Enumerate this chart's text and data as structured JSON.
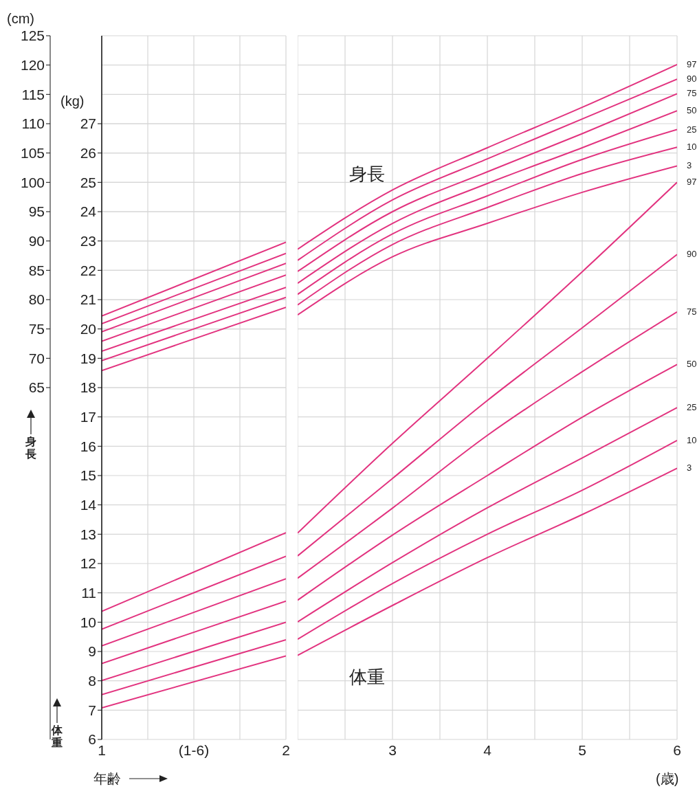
{
  "chart_data": [
    {
      "type": "line",
      "xlabel": "年齢",
      "ylabel": "(kg)",
      "y2label": "(cm)",
      "annotations": [
        "身長",
        "体重"
      ],
      "x": [
        1,
        2
      ],
      "xlim": [
        1,
        2
      ],
      "xticks": [
        1,
        {
          "value": 1.25,
          "label": null
        },
        {
          "value": 1.5,
          "label": "(1-6)"
        },
        {
          "value": 1.75,
          "label": null
        },
        2
      ],
      "ylim": [
        6,
        30
      ],
      "yticks": [
        6,
        7,
        8,
        9,
        10,
        11,
        12,
        13,
        14,
        15,
        16,
        17,
        18,
        19,
        20,
        21,
        22,
        23,
        24,
        25,
        26,
        27
      ],
      "y2lim": [
        5,
        125
      ],
      "y2ticks": [
        65,
        70,
        75,
        80,
        85,
        90,
        95,
        100,
        105,
        110,
        115,
        120,
        125
      ],
      "grid": true,
      "series": [
        {
          "color": "#e2337f",
          "axis": "y2",
          "values": [
            77.2,
            89.8
          ]
        },
        {
          "color": "#e2337f",
          "axis": "y2",
          "values": [
            75.9,
            87.9
          ]
        },
        {
          "color": "#e2337f",
          "axis": "y2",
          "values": [
            74.5,
            86.2
          ]
        },
        {
          "color": "#e2337f",
          "axis": "y2",
          "values": [
            72.9,
            84.2
          ]
        },
        {
          "color": "#e2337f",
          "axis": "y2",
          "values": [
            71.2,
            82.1
          ]
        },
        {
          "color": "#e2337f",
          "axis": "y2",
          "values": [
            69.6,
            80.4
          ]
        },
        {
          "color": "#e2337f",
          "axis": "y2",
          "values": [
            67.9,
            78.7
          ]
        },
        {
          "color": "#e2337f",
          "values": [
            10.37,
            13.05
          ]
        },
        {
          "color": "#e2337f",
          "values": [
            9.76,
            12.25
          ]
        },
        {
          "color": "#e2337f",
          "values": [
            9.19,
            11.48
          ]
        },
        {
          "color": "#e2337f",
          "values": [
            8.59,
            10.72
          ]
        },
        {
          "color": "#e2337f",
          "values": [
            8.01,
            10.0
          ]
        },
        {
          "color": "#e2337f",
          "values": [
            7.53,
            9.4
          ]
        },
        {
          "color": "#e2337f",
          "values": [
            7.08,
            8.85
          ]
        }
      ]
    },
    {
      "type": "line",
      "xlabel": "(歳)",
      "annotations": [
        "身長",
        "体重"
      ],
      "tick_labels": "x",
      "x": [
        2,
        3,
        4,
        5,
        6
      ],
      "xlim": [
        2,
        6
      ],
      "xticks": [
        {
          "value": 2,
          "label": null
        },
        {
          "value": 2.5,
          "label": null
        },
        3,
        {
          "value": 3.5,
          "label": null
        },
        4,
        {
          "value": 4.5,
          "label": null
        },
        5,
        {
          "value": 5.5,
          "label": null
        },
        6
      ],
      "ylim": [
        6,
        30
      ],
      "yticks": [
        6,
        7,
        8,
        9,
        10,
        11,
        12,
        13,
        14,
        15,
        16,
        17,
        18,
        19,
        20,
        21,
        22,
        23,
        24,
        25,
        26,
        27,
        28,
        29
      ],
      "y2lim": [
        5,
        125
      ],
      "y2ticks": [
        125
      ],
      "grid": true,
      "series": [
        {
          "name": "97",
          "color": "#e2337f",
          "axis": "y2",
          "values": [
            88.6,
            98.7,
            105.9,
            112.8,
            120.1
          ]
        },
        {
          "name": "90",
          "color": "#e2337f",
          "axis": "y2",
          "values": [
            86.7,
            97.0,
            104.0,
            110.8,
            117.6
          ]
        },
        {
          "name": "75",
          "color": "#e2337f",
          "axis": "y2",
          "values": [
            84.8,
            95.0,
            101.8,
            108.3,
            115.1
          ]
        },
        {
          "name": "50",
          "color": "#e2337f",
          "axis": "y2",
          "values": [
            82.8,
            93.0,
            99.8,
            105.9,
            112.2
          ]
        },
        {
          "name": "25",
          "color": "#e2337f",
          "axis": "y2",
          "values": [
            80.9,
            91.2,
            97.7,
            103.9,
            109.0
          ]
        },
        {
          "name": "10",
          "color": "#e2337f",
          "axis": "y2",
          "values": [
            79.1,
            89.4,
            95.7,
            101.5,
            106.0
          ]
        },
        {
          "name": "3",
          "color": "#e2337f",
          "axis": "y2",
          "values": [
            77.4,
            87.3,
            93.0,
            98.3,
            102.8
          ]
        },
        {
          "name": "97",
          "color": "#e2337f",
          "values": [
            13.04,
            16.1,
            19.0,
            21.95,
            25.0
          ]
        },
        {
          "name": "90",
          "color": "#e2337f",
          "values": [
            12.26,
            14.9,
            17.56,
            20.04,
            22.54
          ]
        },
        {
          "name": "75",
          "color": "#e2337f",
          "values": [
            11.5,
            13.89,
            16.37,
            18.54,
            20.58
          ]
        },
        {
          "name": "50",
          "color": "#e2337f",
          "values": [
            10.75,
            12.97,
            15.0,
            16.99,
            18.79
          ]
        },
        {
          "name": "25",
          "color": "#e2337f",
          "values": [
            10.01,
            12.03,
            13.9,
            15.6,
            17.32
          ]
        },
        {
          "name": "10",
          "color": "#e2337f",
          "values": [
            9.42,
            11.32,
            13.0,
            14.5,
            16.2
          ]
        },
        {
          "name": "3",
          "color": "#e2337f",
          "values": [
            8.87,
            10.57,
            12.2,
            13.67,
            15.25
          ]
        }
      ]
    }
  ]
}
